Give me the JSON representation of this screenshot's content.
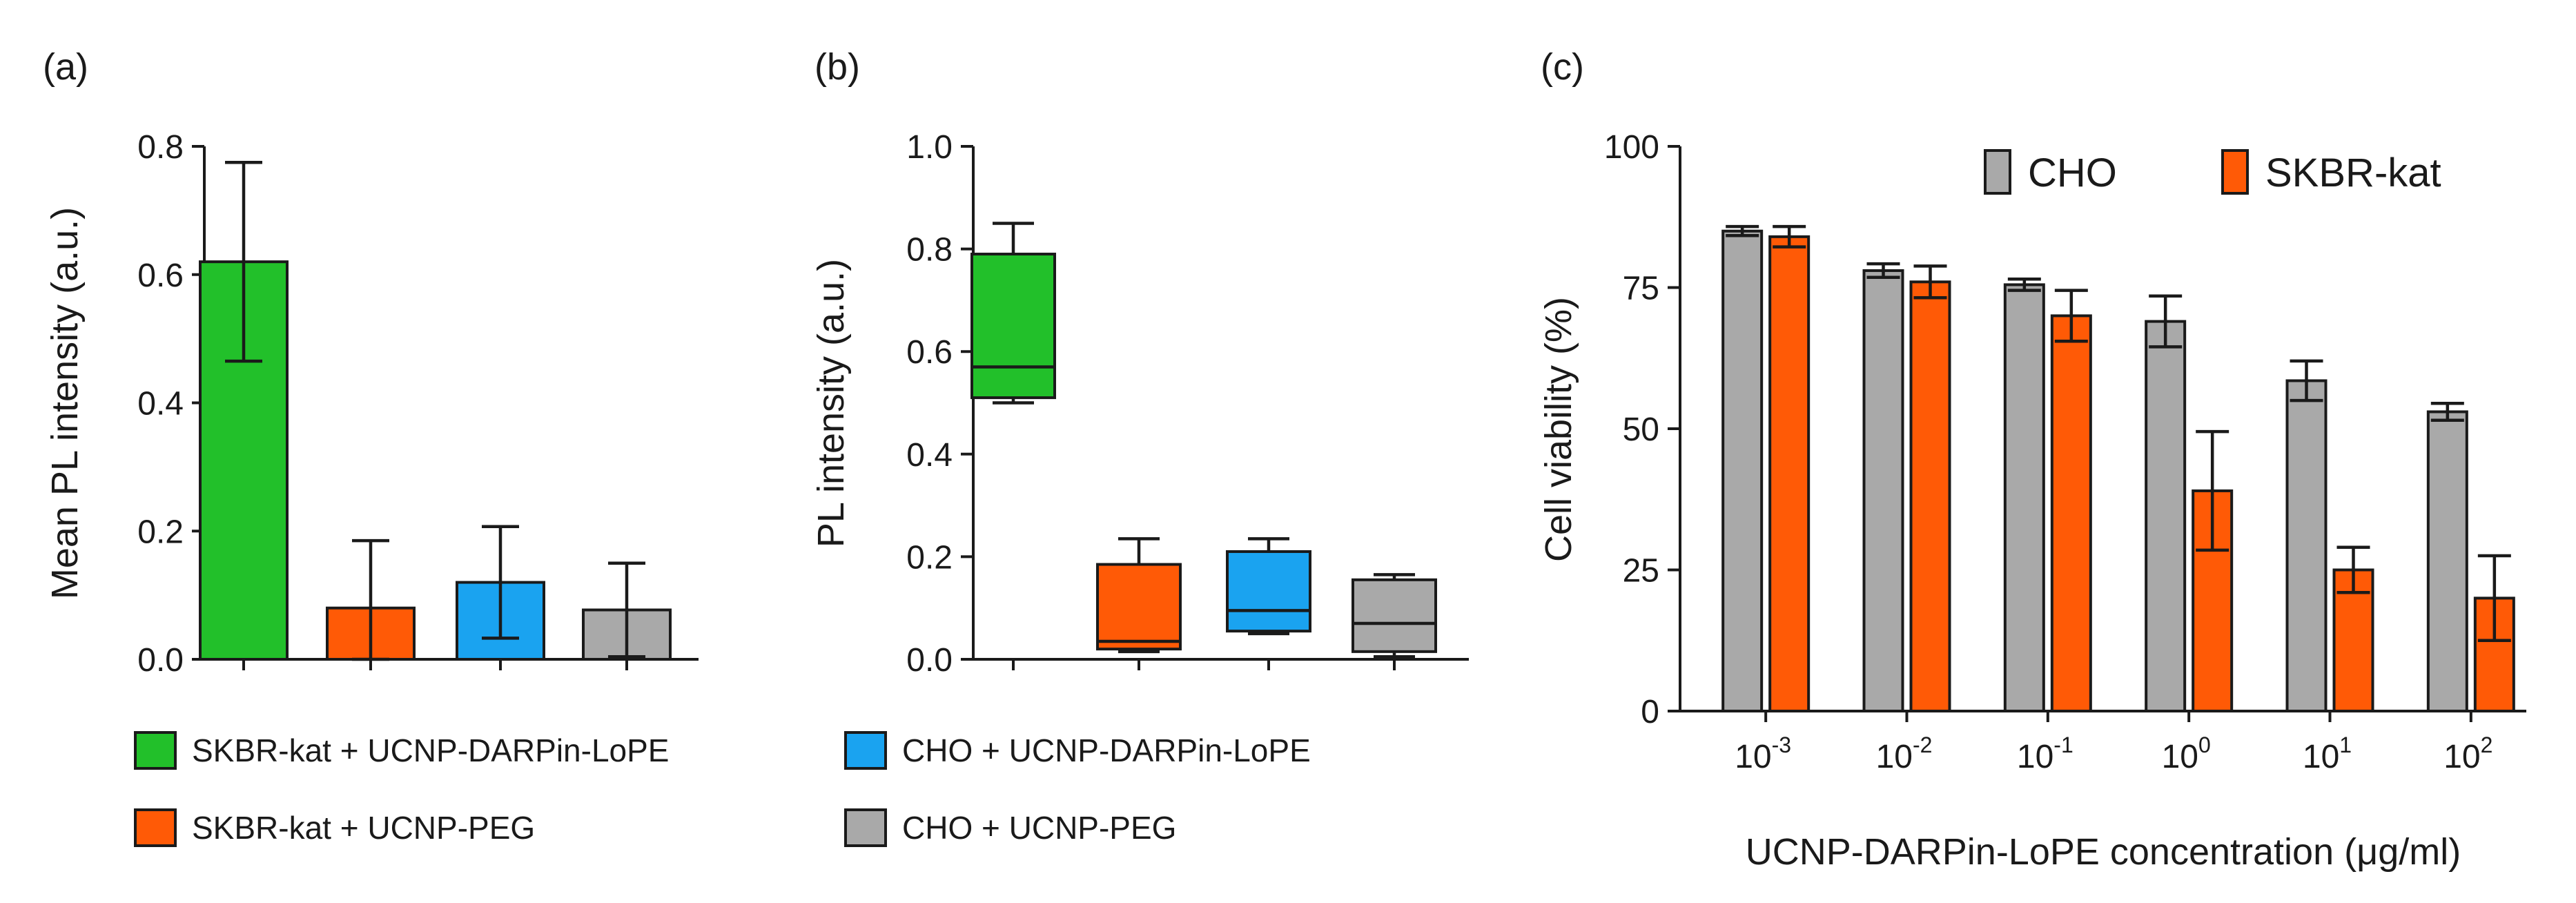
{
  "panels": {
    "a": "(a)",
    "b": "(b)",
    "c": "(c)"
  },
  "colors": {
    "green": "#22c02a",
    "orange": "#ff5a06",
    "blue": "#1aa3f0",
    "gray": "#a9a9a9"
  },
  "legend_ab": [
    {
      "label": "SKBR-kat + UCNP-DARPin-LoPE",
      "color": "#22c02a"
    },
    {
      "label": "CHO + UCNP-DARPin-LoPE",
      "color": "#1aa3f0"
    },
    {
      "label": "SKBR-kat + UCNP-PEG",
      "color": "#ff5a06"
    },
    {
      "label": "CHO + UCNP-PEG",
      "color": "#a9a9a9"
    }
  ],
  "chart_data": [
    {
      "id": "a",
      "type": "bar",
      "title": "",
      "xlabel": "",
      "ylabel": "Mean PL intensity (a.u.)",
      "ylim": [
        0,
        0.8
      ],
      "yticks": [
        "0.0",
        "0.2",
        "0.4",
        "0.6",
        "0.8"
      ],
      "categories": [
        "SKBR-kat + UCNP-DARPin-LoPE",
        "SKBR-kat + UCNP-PEG",
        "CHO + UCNP-DARPin-LoPE",
        "CHO + UCNP-PEG"
      ],
      "values": [
        0.62,
        0.08,
        0.12,
        0.077
      ],
      "errors": [
        0.155,
        0.105,
        0.087,
        0.073
      ],
      "colors": [
        "#22c02a",
        "#ff5a06",
        "#1aa3f0",
        "#a9a9a9"
      ]
    },
    {
      "id": "b",
      "type": "box",
      "title": "",
      "xlabel": "",
      "ylabel": "PL intensity (a.u.)",
      "ylim": [
        0,
        1.0
      ],
      "yticks": [
        "0.0",
        "0.2",
        "0.4",
        "0.6",
        "0.8",
        "1.0"
      ],
      "categories": [
        "SKBR-kat + UCNP-DARPin-LoPE",
        "SKBR-kat + UCNP-PEG",
        "CHO + UCNP-DARPin-LoPE",
        "CHO + UCNP-PEG"
      ],
      "boxes": [
        {
          "min": 0.5,
          "q1": 0.51,
          "median": 0.57,
          "q3": 0.79,
          "max": 0.85
        },
        {
          "min": 0.015,
          "q1": 0.02,
          "median": 0.035,
          "q3": 0.185,
          "max": 0.235
        },
        {
          "min": 0.05,
          "q1": 0.055,
          "median": 0.095,
          "q3": 0.21,
          "max": 0.235
        },
        {
          "min": 0.005,
          "q1": 0.015,
          "median": 0.07,
          "q3": 0.155,
          "max": 0.165
        }
      ],
      "colors": [
        "#22c02a",
        "#ff5a06",
        "#1aa3f0",
        "#a9a9a9"
      ]
    },
    {
      "id": "c",
      "type": "bar",
      "title": "",
      "xlabel": "UCNP-DARPin-LoPE concentration (μg/ml)",
      "ylabel": "Cell viability (%)",
      "ylim": [
        0,
        100
      ],
      "yticks": [
        "0",
        "25",
        "50",
        "75",
        "100"
      ],
      "categories": [
        {
          "base": "10",
          "exp": "-3"
        },
        {
          "base": "10",
          "exp": "-2"
        },
        {
          "base": "10",
          "exp": "-1"
        },
        {
          "base": "10",
          "exp": "0"
        },
        {
          "base": "10",
          "exp": "1"
        },
        {
          "base": "10",
          "exp": "2"
        }
      ],
      "series": [
        {
          "name": "CHO",
          "color": "#a9a9a9",
          "values": [
            85,
            78,
            75.5,
            69,
            58.5,
            53
          ],
          "errors": [
            0.8,
            1.2,
            1.0,
            4.5,
            3.5,
            1.5
          ]
        },
        {
          "name": "SKBR-kat",
          "color": "#ff5a06",
          "values": [
            84,
            76,
            70,
            39,
            25,
            20
          ],
          "errors": [
            1.8,
            2.8,
            4.5,
            10.5,
            4.0,
            7.5
          ]
        }
      ]
    }
  ]
}
